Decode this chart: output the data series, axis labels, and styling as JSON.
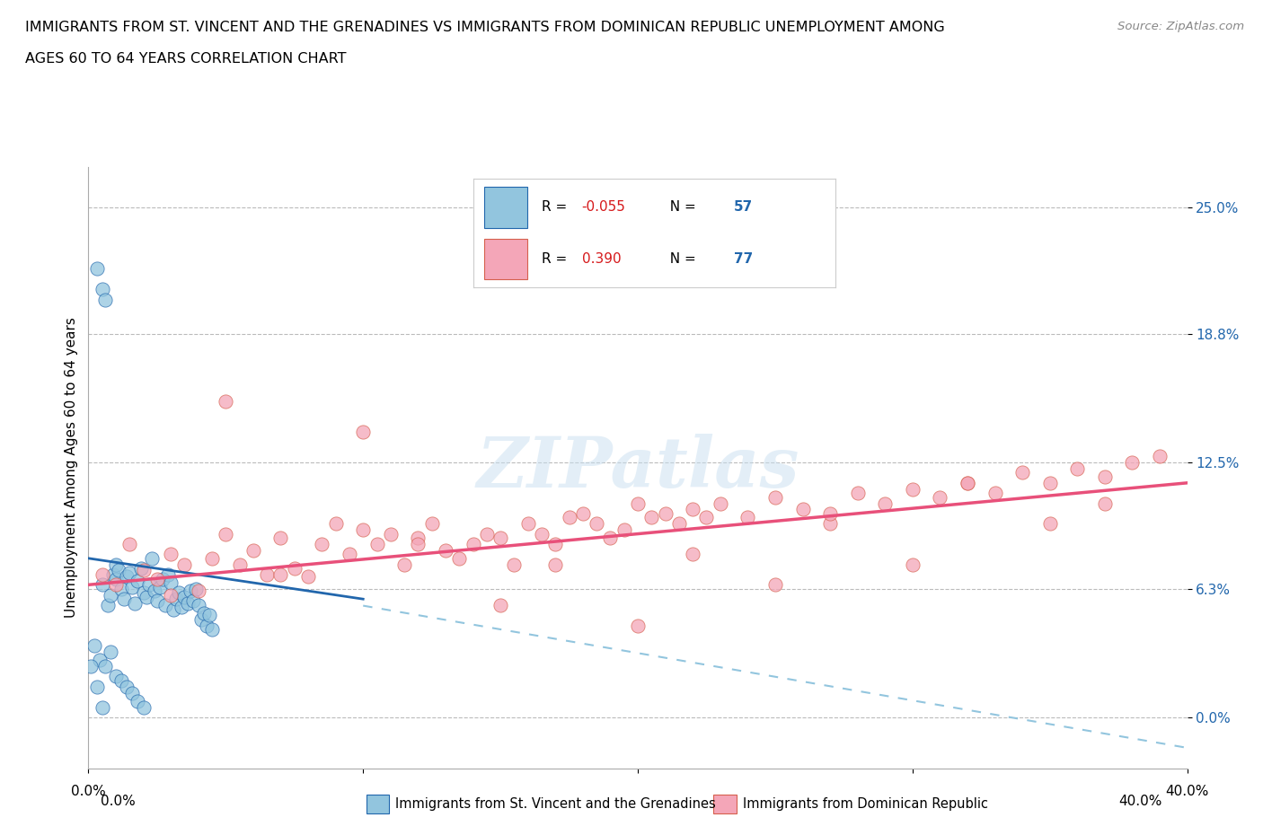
{
  "title_line1": "IMMIGRANTS FROM ST. VINCENT AND THE GRENADINES VS IMMIGRANTS FROM DOMINICAN REPUBLIC UNEMPLOYMENT AMONG",
  "title_line2": "AGES 60 TO 64 YEARS CORRELATION CHART",
  "source": "Source: ZipAtlas.com",
  "ylabel": "Unemployment Among Ages 60 to 64 years",
  "y_tick_vals": [
    0.0,
    6.3,
    12.5,
    18.8,
    25.0
  ],
  "x_min": 0.0,
  "x_max": 40.0,
  "y_min": -2.5,
  "y_max": 27.0,
  "color_blue": "#92c5de",
  "color_pink": "#f4a6b8",
  "color_blue_line": "#2166ac",
  "color_pink_line": "#d6604d",
  "color_blue_reg": "#6baed6",
  "color_pink_reg": "#e8507a",
  "label1": "Immigrants from St. Vincent and the Grenadines",
  "label2": "Immigrants from Dominican Republic",
  "blue_x": [
    0.3,
    0.5,
    0.5,
    0.6,
    0.7,
    0.8,
    0.9,
    1.0,
    1.0,
    1.1,
    1.2,
    1.3,
    1.4,
    1.5,
    1.6,
    1.7,
    1.8,
    1.9,
    2.0,
    2.1,
    2.2,
    2.3,
    2.4,
    2.5,
    2.6,
    2.7,
    2.8,
    2.9,
    3.0,
    3.1,
    3.2,
    3.3,
    3.4,
    3.5,
    3.6,
    3.7,
    3.8,
    3.9,
    4.0,
    4.1,
    4.2,
    4.3,
    4.4,
    4.5,
    0.2,
    0.4,
    0.6,
    0.8,
    1.0,
    1.2,
    1.4,
    1.6,
    1.8,
    2.0,
    0.1,
    0.3,
    0.5
  ],
  "blue_y": [
    22.0,
    21.0,
    6.5,
    20.5,
    5.5,
    6.0,
    7.0,
    6.8,
    7.5,
    7.2,
    6.3,
    5.8,
    6.9,
    7.1,
    6.4,
    5.6,
    6.7,
    7.3,
    6.1,
    5.9,
    6.5,
    7.8,
    6.2,
    5.7,
    6.4,
    6.8,
    5.5,
    7.0,
    6.6,
    5.3,
    5.8,
    6.1,
    5.4,
    5.9,
    5.6,
    6.2,
    5.7,
    6.3,
    5.5,
    4.8,
    5.1,
    4.5,
    5.0,
    4.3,
    3.5,
    2.8,
    2.5,
    3.2,
    2.0,
    1.8,
    1.5,
    1.2,
    0.8,
    0.5,
    2.5,
    1.5,
    0.5
  ],
  "pink_x": [
    0.5,
    1.0,
    1.5,
    2.0,
    2.5,
    3.0,
    3.5,
    4.0,
    4.5,
    5.0,
    5.5,
    6.0,
    6.5,
    7.0,
    7.5,
    8.0,
    8.5,
    9.0,
    9.5,
    10.0,
    10.5,
    11.0,
    11.5,
    12.0,
    12.5,
    13.0,
    13.5,
    14.0,
    14.5,
    15.0,
    15.5,
    16.0,
    16.5,
    17.0,
    17.5,
    18.0,
    18.5,
    19.0,
    19.5,
    20.0,
    20.5,
    21.0,
    21.5,
    22.0,
    22.5,
    23.0,
    24.0,
    25.0,
    26.0,
    27.0,
    28.0,
    29.0,
    30.0,
    31.0,
    32.0,
    33.0,
    34.0,
    35.0,
    36.0,
    37.0,
    38.0,
    5.0,
    10.0,
    15.0,
    20.0,
    25.0,
    30.0,
    35.0,
    3.0,
    7.0,
    12.0,
    17.0,
    22.0,
    27.0,
    32.0,
    37.0,
    39.0
  ],
  "pink_y": [
    7.0,
    6.5,
    8.5,
    7.2,
    6.8,
    8.0,
    7.5,
    6.2,
    7.8,
    9.0,
    7.5,
    8.2,
    7.0,
    8.8,
    7.3,
    6.9,
    8.5,
    9.5,
    8.0,
    9.2,
    8.5,
    9.0,
    7.5,
    8.8,
    9.5,
    8.2,
    7.8,
    8.5,
    9.0,
    8.8,
    7.5,
    9.5,
    9.0,
    8.5,
    9.8,
    10.0,
    9.5,
    8.8,
    9.2,
    10.5,
    9.8,
    10.0,
    9.5,
    10.2,
    9.8,
    10.5,
    9.8,
    10.8,
    10.2,
    9.5,
    11.0,
    10.5,
    11.2,
    10.8,
    11.5,
    11.0,
    12.0,
    11.5,
    12.2,
    11.8,
    12.5,
    15.5,
    14.0,
    5.5,
    4.5,
    6.5,
    7.5,
    9.5,
    6.0,
    7.0,
    8.5,
    7.5,
    8.0,
    10.0,
    11.5,
    10.5,
    12.8
  ],
  "reg_blue_x0": 0.0,
  "reg_blue_x1": 10.0,
  "reg_blue_y0": 7.8,
  "reg_blue_y1": 5.8,
  "reg_blue_ext_x1": 40.0,
  "reg_blue_ext_y1": -1.5,
  "reg_pink_x0": 0.0,
  "reg_pink_x1": 40.0,
  "reg_pink_y0": 6.5,
  "reg_pink_y1": 11.5
}
